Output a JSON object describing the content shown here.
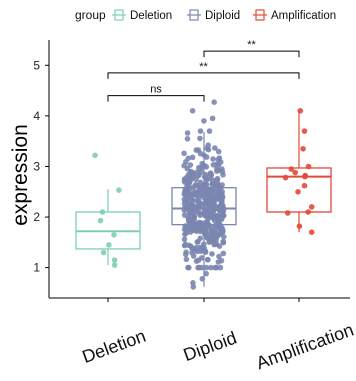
{
  "chart_data": {
    "type": "boxplot-jitter",
    "title": "",
    "xlabel": "",
    "ylabel": "expression",
    "ylim": [
      0.4,
      5.5
    ],
    "y_ticks": [
      1,
      2,
      3,
      4,
      5
    ],
    "grid": false,
    "legend": {
      "title": "group",
      "placement": "top",
      "entries": [
        "Deletion",
        "Diploid",
        "Amplification"
      ]
    },
    "categories": [
      "Deletion",
      "Diploid",
      "Amplification"
    ],
    "colors": {
      "Deletion": "#7fcdb8",
      "Diploid": "#7b86b0",
      "Amplification": "#e2493a"
    },
    "boxes": [
      {
        "name": "Deletion",
        "whisker_low": 1.05,
        "q1": 1.37,
        "median": 1.72,
        "q3": 2.1,
        "whisker_high": 2.55
      },
      {
        "name": "Diploid",
        "whisker_low": 0.62,
        "q1": 1.85,
        "median": 2.17,
        "q3": 2.58,
        "whisker_high": 3.68
      },
      {
        "name": "Amplification",
        "whisker_low": 1.7,
        "q1": 2.1,
        "median": 2.8,
        "q3": 2.97,
        "whisker_high": 4.1
      }
    ],
    "points": {
      "Deletion": [
        3.22,
        2.53,
        2.1,
        1.93,
        1.65,
        1.45,
        1.3,
        1.15,
        1.05
      ],
      "Amplification": [
        4.1,
        3.7,
        3.35,
        3.0,
        2.95,
        2.88,
        2.82,
        2.8,
        2.78,
        2.62,
        2.5,
        2.2,
        2.1,
        2.08,
        1.82,
        1.7
      ],
      "Diploid_outliers": [
        4.27,
        4.1,
        3.95,
        3.9,
        0.62,
        0.7,
        0.78,
        0.88
      ],
      "Diploid_n": 420
    },
    "significance": [
      {
        "from": "Deletion",
        "to": "Diploid",
        "label": "ns",
        "y": 4.4
      },
      {
        "from": "Deletion",
        "to": "Amplification",
        "label": "**",
        "y": 4.85
      },
      {
        "from": "Diploid",
        "to": "Amplification",
        "label": "**",
        "y": 5.28
      }
    ]
  }
}
